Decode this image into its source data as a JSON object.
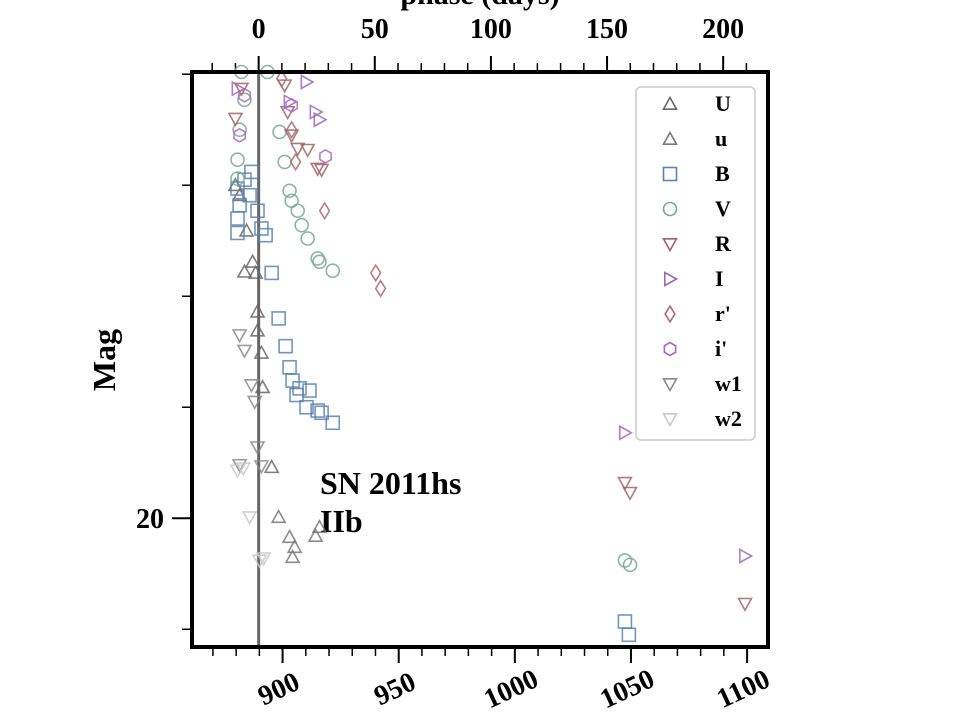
{
  "chart_data": {
    "type": "scatter",
    "xlabel_top": "phase (days)",
    "ylabel": "Mag",
    "annotation": [
      "SN 2011hs",
      "IIb"
    ],
    "xlim": [
      861,
      1109
    ],
    "xticks": [
      900,
      950,
      1000,
      1050,
      1100
    ],
    "xminorticks": [
      870,
      880,
      890,
      910,
      920,
      930,
      940,
      960,
      970,
      980,
      990,
      1010,
      1020,
      1030,
      1040,
      1060,
      1070,
      1080,
      1090
    ],
    "x2lim": [
      -28.7,
      219.3
    ],
    "x2ticks": [
      0,
      50,
      100,
      150,
      200
    ],
    "x2minorticks": [
      -20,
      -10,
      10,
      20,
      30,
      40,
      60,
      70,
      80,
      90,
      110,
      120,
      130,
      140,
      160,
      170,
      180,
      190,
      210
    ],
    "ylim": [
      21.16,
      15.98
    ],
    "yticks": [
      20
    ],
    "yminorticks": [
      16,
      17,
      18,
      19,
      21
    ],
    "vline": 889.7,
    "legend": "upper right",
    "series": [
      {
        "name": "U",
        "color": "#666666",
        "marker": "^",
        "x": [
          879.7,
          881.5,
          884.5,
          887.1,
          883.6,
          888.4,
          889.2,
          889.2,
          890.9,
          891.4,
          895.3
        ],
        "values": [
          17.0,
          17.09,
          17.41,
          17.69,
          17.78,
          17.79,
          18.14,
          18.31,
          18.51,
          18.82,
          19.54
        ]
      },
      {
        "name": "u",
        "color": "#777777",
        "marker": "^",
        "x": [
          898.3,
          903.0,
          905.2,
          904.3,
          914.2,
          915.9
        ],
        "values": [
          19.99,
          20.17,
          20.26,
          20.35,
          20.16,
          20.08
        ]
      },
      {
        "name": "B",
        "color": "#5b82ad",
        "marker": "s",
        "x": [
          886.6,
          883.6,
          880.6,
          885.8,
          881.5,
          889.2,
          880.6,
          890.9,
          880.6,
          892.7,
          895.3,
          898.3,
          901.3,
          903.0,
          904.3,
          907.3,
          911.6,
          906.0,
          910.3,
          915.1,
          916.8,
          921.6,
          1047.4,
          1049.1
        ],
        "values": [
          16.88,
          16.95,
          17.03,
          17.09,
          17.18,
          17.23,
          17.3,
          17.39,
          17.43,
          17.45,
          17.79,
          18.2,
          18.45,
          18.64,
          18.76,
          18.83,
          18.85,
          18.89,
          19.0,
          19.03,
          19.05,
          19.14,
          20.93,
          21.05
        ]
      },
      {
        "name": "V",
        "color": "#78a890",
        "marker": "o",
        "x": [
          882.3,
          893.5,
          883.6,
          881.5,
          898.7,
          880.6,
          900.9,
          880.6,
          903.0,
          903.9,
          906.5,
          908.2,
          910.8,
          915.1,
          915.9,
          921.6,
          1047.4,
          1049.6
        ],
        "values": [
          15.98,
          15.98,
          16.23,
          16.5,
          16.52,
          16.77,
          16.79,
          16.94,
          17.05,
          17.14,
          17.23,
          17.36,
          17.48,
          17.66,
          17.69,
          17.77,
          20.38,
          20.42
        ]
      },
      {
        "name": "R",
        "color": "#a06464",
        "marker": "v",
        "x": [
          879.7,
          882.3,
          900.9,
          902.2,
          903.9,
          906.5,
          910.8,
          915.1,
          916.8,
          1047.4,
          1049.6,
          1099.1
        ],
        "values": [
          16.4,
          16.13,
          16.1,
          16.34,
          16.55,
          16.67,
          16.68,
          16.85,
          16.86,
          19.68,
          19.77,
          20.77
        ]
      },
      {
        "name": "I",
        "color": "#9c68b0",
        "marker": ">",
        "x": [
          880.6,
          910.3,
          903.0,
          914.2,
          915.9,
          1047.4,
          1099.1
        ],
        "values": [
          16.13,
          16.07,
          16.25,
          16.34,
          16.41,
          19.23,
          20.34
        ]
      },
      {
        "name": "r'",
        "color": "#a8686e",
        "marker": "D",
        "x": [
          899.6,
          903.9,
          905.6,
          918.1,
          940.1,
          942.2
        ],
        "values": [
          16.04,
          16.5,
          16.79,
          17.23,
          17.79,
          17.93
        ]
      },
      {
        "name": "i'",
        "color": "#a868c0",
        "marker": "h",
        "x": [
          883.6,
          881.5,
          903.9,
          918.5
        ],
        "values": [
          16.19,
          16.55,
          16.28,
          16.74
        ]
      },
      {
        "name": "w1",
        "color": "#8a8a8a",
        "marker": "v",
        "x": [
          881.5,
          883.6,
          886.6,
          888.0,
          889.2,
          890.9,
          881.5
        ],
        "values": [
          18.35,
          18.49,
          18.8,
          18.95,
          19.36,
          19.53,
          19.52
        ]
      },
      {
        "name": "w2",
        "color": "#c8c8c8",
        "marker": "v",
        "x": [
          880.6,
          883.1,
          885.8,
          890.1,
          891.8
        ],
        "values": [
          19.57,
          19.55,
          19.99,
          20.38,
          20.36
        ]
      }
    ]
  }
}
